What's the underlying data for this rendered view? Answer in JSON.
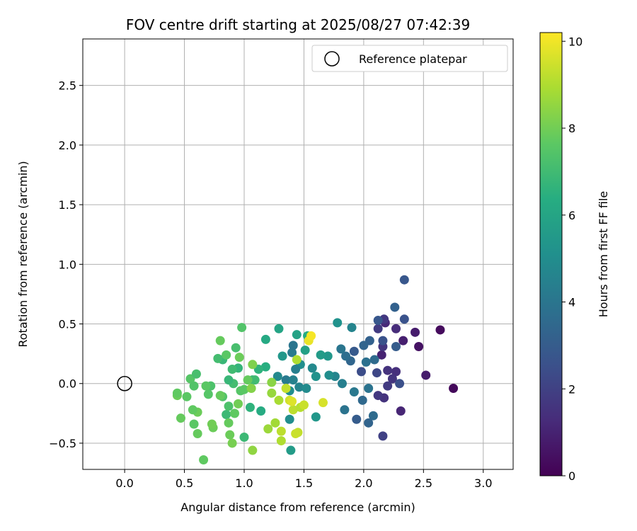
{
  "chart_data": {
    "type": "scatter",
    "title": "FOV centre drift starting at 2025/08/27 07:42:39",
    "xlabel": "Angular distance from reference (arcmin)",
    "ylabel": "Rotation from reference (arcmin)",
    "xlim": [
      -0.35,
      3.25
    ],
    "ylim": [
      -0.72,
      2.89
    ],
    "xticks": [
      0.0,
      0.5,
      1.0,
      1.5,
      2.0,
      2.5,
      3.0
    ],
    "xtick_labels": [
      "0.0",
      "0.5",
      "1.0",
      "1.5",
      "2.0",
      "2.5",
      "3.0"
    ],
    "yticks": [
      -0.5,
      0.0,
      0.5,
      1.0,
      1.5,
      2.0,
      2.5
    ],
    "ytick_labels": [
      "−0.5",
      "0.0",
      "0.5",
      "1.0",
      "1.5",
      "2.0",
      "2.5"
    ],
    "grid": true,
    "legend": {
      "placement": "upper right",
      "entries": [
        {
          "label": "Reference platepar",
          "marker": "open-circle"
        }
      ]
    },
    "reference_point": {
      "x": 0.0,
      "y": 0.0
    },
    "colorbar": {
      "label": "Hours from first FF file",
      "colormap": "viridis",
      "range": [
        0,
        10.2
      ],
      "ticks": [
        0,
        2,
        4,
        6,
        8,
        10
      ],
      "tick_labels": [
        "0",
        "2",
        "4",
        "6",
        "8",
        "10"
      ]
    },
    "points": [
      {
        "x": 2.34,
        "y": 0.87,
        "h": 2.8
      },
      {
        "x": 2.64,
        "y": 0.45,
        "h": 0.3
      },
      {
        "x": 2.75,
        "y": -0.04,
        "h": 0.2
      },
      {
        "x": 2.52,
        "y": 0.07,
        "h": 0.8
      },
      {
        "x": 2.46,
        "y": 0.31,
        "h": 0.5
      },
      {
        "x": 2.43,
        "y": 0.43,
        "h": 0.8
      },
      {
        "x": 2.33,
        "y": 0.36,
        "h": 0.9
      },
      {
        "x": 2.31,
        "y": -0.23,
        "h": 1.1
      },
      {
        "x": 2.27,
        "y": 0.46,
        "h": 1.3
      },
      {
        "x": 2.18,
        "y": 0.51,
        "h": 1.2
      },
      {
        "x": 2.15,
        "y": 0.24,
        "h": 1.0
      },
      {
        "x": 2.27,
        "y": 0.1,
        "h": 1.4
      },
      {
        "x": 2.2,
        "y": 0.11,
        "h": 1.5
      },
      {
        "x": 2.17,
        "y": 0.54,
        "h": 1.7
      },
      {
        "x": 2.12,
        "y": 0.46,
        "h": 1.8
      },
      {
        "x": 2.16,
        "y": 0.31,
        "h": 1.6
      },
      {
        "x": 2.24,
        "y": 0.04,
        "h": 1.6
      },
      {
        "x": 2.2,
        "y": -0.02,
        "h": 1.8
      },
      {
        "x": 2.17,
        "y": -0.12,
        "h": 1.5
      },
      {
        "x": 2.12,
        "y": -0.1,
        "h": 1.7
      },
      {
        "x": 2.16,
        "y": -0.44,
        "h": 2.0
      },
      {
        "x": 2.11,
        "y": 0.09,
        "h": 2.2
      },
      {
        "x": 2.3,
        "y": 0.0,
        "h": 2.5
      },
      {
        "x": 2.34,
        "y": 0.54,
        "h": 2.6
      },
      {
        "x": 2.26,
        "y": 0.64,
        "h": 3.2
      },
      {
        "x": 2.12,
        "y": 0.53,
        "h": 2.8
      },
      {
        "x": 2.16,
        "y": 0.36,
        "h": 2.6
      },
      {
        "x": 2.27,
        "y": 0.31,
        "h": 3.0
      },
      {
        "x": 2.05,
        "y": 0.36,
        "h": 3.2
      },
      {
        "x": 2.0,
        "y": 0.32,
        "h": 3.3
      },
      {
        "x": 2.09,
        "y": 0.2,
        "h": 3.6
      },
      {
        "x": 2.02,
        "y": 0.18,
        "h": 3.8
      },
      {
        "x": 1.98,
        "y": 0.1,
        "h": 2.4
      },
      {
        "x": 1.92,
        "y": 0.27,
        "h": 2.9
      },
      {
        "x": 1.89,
        "y": 0.19,
        "h": 3.4
      },
      {
        "x": 1.85,
        "y": 0.23,
        "h": 3.7
      },
      {
        "x": 1.81,
        "y": 0.29,
        "h": 4.0
      },
      {
        "x": 1.99,
        "y": -0.14,
        "h": 3.5
      },
      {
        "x": 2.04,
        "y": -0.04,
        "h": 3.9
      },
      {
        "x": 2.08,
        "y": -0.27,
        "h": 3.6
      },
      {
        "x": 2.04,
        "y": -0.33,
        "h": 3.3
      },
      {
        "x": 1.94,
        "y": -0.3,
        "h": 3.0
      },
      {
        "x": 1.92,
        "y": -0.07,
        "h": 4.1
      },
      {
        "x": 1.84,
        "y": -0.22,
        "h": 3.9
      },
      {
        "x": 1.82,
        "y": 0.0,
        "h": 4.4
      },
      {
        "x": 1.76,
        "y": 0.06,
        "h": 4.6
      },
      {
        "x": 1.9,
        "y": 0.47,
        "h": 4.6
      },
      {
        "x": 1.78,
        "y": 0.51,
        "h": 5.2
      },
      {
        "x": 1.71,
        "y": 0.07,
        "h": 5.0
      },
      {
        "x": 1.7,
        "y": 0.23,
        "h": 5.4
      },
      {
        "x": 1.64,
        "y": 0.24,
        "h": 5.6
      },
      {
        "x": 1.57,
        "y": 0.13,
        "h": 4.8
      },
      {
        "x": 1.6,
        "y": 0.06,
        "h": 5.2
      },
      {
        "x": 1.51,
        "y": 0.28,
        "h": 5.8
      },
      {
        "x": 1.47,
        "y": 0.16,
        "h": 5.0
      },
      {
        "x": 1.43,
        "y": 0.12,
        "h": 4.4
      },
      {
        "x": 1.4,
        "y": 0.26,
        "h": 4.2
      },
      {
        "x": 1.41,
        "y": 0.32,
        "h": 4.0
      },
      {
        "x": 1.32,
        "y": 0.23,
        "h": 5.4
      },
      {
        "x": 1.44,
        "y": 0.41,
        "h": 5.9
      },
      {
        "x": 1.53,
        "y": 0.4,
        "h": 6.3
      },
      {
        "x": 1.28,
        "y": 0.06,
        "h": 4.8
      },
      {
        "x": 1.35,
        "y": 0.03,
        "h": 4.2
      },
      {
        "x": 1.41,
        "y": 0.03,
        "h": 4.5
      },
      {
        "x": 1.38,
        "y": -0.06,
        "h": 5.0
      },
      {
        "x": 1.46,
        "y": -0.03,
        "h": 4.6
      },
      {
        "x": 1.52,
        "y": -0.04,
        "h": 4.9
      },
      {
        "x": 1.6,
        "y": -0.28,
        "h": 5.4
      },
      {
        "x": 1.38,
        "y": -0.3,
        "h": 5.0
      },
      {
        "x": 1.39,
        "y": -0.56,
        "h": 5.6
      },
      {
        "x": 1.29,
        "y": 0.46,
        "h": 6.0
      },
      {
        "x": 1.18,
        "y": 0.37,
        "h": 6.2
      },
      {
        "x": 1.18,
        "y": 0.14,
        "h": 6.4
      },
      {
        "x": 1.12,
        "y": 0.12,
        "h": 6.6
      },
      {
        "x": 1.14,
        "y": -0.23,
        "h": 6.3
      },
      {
        "x": 1.05,
        "y": -0.2,
        "h": 6.6
      },
      {
        "x": 1.07,
        "y": 0.03,
        "h": 6.8
      },
      {
        "x": 1.09,
        "y": 0.03,
        "h": 7.0
      },
      {
        "x": 1.0,
        "y": -0.45,
        "h": 6.9
      },
      {
        "x": 0.95,
        "y": 0.13,
        "h": 6.7
      },
      {
        "x": 0.9,
        "y": 0.12,
        "h": 7.0
      },
      {
        "x": 0.93,
        "y": 0.3,
        "h": 7.2
      },
      {
        "x": 0.82,
        "y": 0.2,
        "h": 6.8
      },
      {
        "x": 0.78,
        "y": 0.21,
        "h": 7.1
      },
      {
        "x": 0.85,
        "y": -0.26,
        "h": 6.9
      },
      {
        "x": 0.87,
        "y": -0.19,
        "h": 7.3
      },
      {
        "x": 0.91,
        "y": 0.0,
        "h": 7.1
      },
      {
        "x": 0.87,
        "y": 0.03,
        "h": 6.8
      },
      {
        "x": 0.98,
        "y": 0.47,
        "h": 7.4
      },
      {
        "x": 0.8,
        "y": 0.36,
        "h": 7.8
      },
      {
        "x": 0.85,
        "y": 0.24,
        "h": 7.6
      },
      {
        "x": 0.96,
        "y": 0.22,
        "h": 7.9
      },
      {
        "x": 0.92,
        "y": -0.25,
        "h": 7.7
      },
      {
        "x": 0.87,
        "y": -0.33,
        "h": 7.8
      },
      {
        "x": 0.82,
        "y": -0.11,
        "h": 7.4
      },
      {
        "x": 0.97,
        "y": -0.06,
        "h": 7.5
      },
      {
        "x": 1.0,
        "y": -0.05,
        "h": 7.6
      },
      {
        "x": 1.03,
        "y": 0.03,
        "h": 7.8
      },
      {
        "x": 0.95,
        "y": -0.17,
        "h": 8.0
      },
      {
        "x": 0.9,
        "y": -0.5,
        "h": 8.1
      },
      {
        "x": 0.88,
        "y": -0.43,
        "h": 7.9
      },
      {
        "x": 0.72,
        "y": -0.02,
        "h": 7.3
      },
      {
        "x": 0.7,
        "y": -0.09,
        "h": 7.5
      },
      {
        "x": 0.66,
        "y": -0.64,
        "h": 7.7
      },
      {
        "x": 0.74,
        "y": -0.37,
        "h": 7.9
      },
      {
        "x": 0.73,
        "y": -0.34,
        "h": 8.0
      },
      {
        "x": 0.61,
        "y": -0.42,
        "h": 7.8
      },
      {
        "x": 0.58,
        "y": -0.34,
        "h": 7.6
      },
      {
        "x": 0.61,
        "y": -0.24,
        "h": 7.9
      },
      {
        "x": 0.57,
        "y": -0.22,
        "h": 7.7
      },
      {
        "x": 0.52,
        "y": -0.11,
        "h": 7.6
      },
      {
        "x": 0.47,
        "y": -0.29,
        "h": 7.8
      },
      {
        "x": 0.44,
        "y": -0.1,
        "h": 7.9
      },
      {
        "x": 0.44,
        "y": -0.08,
        "h": 7.7
      },
      {
        "x": 0.55,
        "y": 0.04,
        "h": 7.5
      },
      {
        "x": 0.58,
        "y": -0.02,
        "h": 7.4
      },
      {
        "x": 0.6,
        "y": 0.08,
        "h": 7.2
      },
      {
        "x": 0.68,
        "y": -0.02,
        "h": 7.6
      },
      {
        "x": 0.8,
        "y": -0.1,
        "h": 7.8
      },
      {
        "x": 1.07,
        "y": 0.16,
        "h": 8.2
      },
      {
        "x": 1.06,
        "y": -0.04,
        "h": 8.3
      },
      {
        "x": 1.23,
        "y": 0.01,
        "h": 8.4
      },
      {
        "x": 1.23,
        "y": -0.08,
        "h": 8.6
      },
      {
        "x": 1.29,
        "y": -0.14,
        "h": 8.9
      },
      {
        "x": 1.31,
        "y": -0.48,
        "h": 9.0
      },
      {
        "x": 1.26,
        "y": -0.33,
        "h": 8.8
      },
      {
        "x": 1.2,
        "y": -0.38,
        "h": 8.7
      },
      {
        "x": 1.07,
        "y": -0.56,
        "h": 8.5
      },
      {
        "x": 1.41,
        "y": -0.22,
        "h": 9.2
      },
      {
        "x": 1.47,
        "y": -0.2,
        "h": 9.1
      },
      {
        "x": 1.45,
        "y": -0.41,
        "h": 9.3
      },
      {
        "x": 1.43,
        "y": -0.42,
        "h": 9.4
      },
      {
        "x": 1.38,
        "y": -0.14,
        "h": 9.5
      },
      {
        "x": 1.35,
        "y": -0.04,
        "h": 9.3
      },
      {
        "x": 1.5,
        "y": -0.18,
        "h": 9.4
      },
      {
        "x": 1.66,
        "y": -0.16,
        "h": 9.6
      },
      {
        "x": 1.44,
        "y": 0.2,
        "h": 9.0
      },
      {
        "x": 1.54,
        "y": 0.36,
        "h": 9.9
      },
      {
        "x": 1.56,
        "y": 0.4,
        "h": 10.1
      },
      {
        "x": 1.4,
        "y": -0.15,
        "h": 9.7
      },
      {
        "x": 1.31,
        "y": -0.4,
        "h": 9.2
      }
    ]
  }
}
